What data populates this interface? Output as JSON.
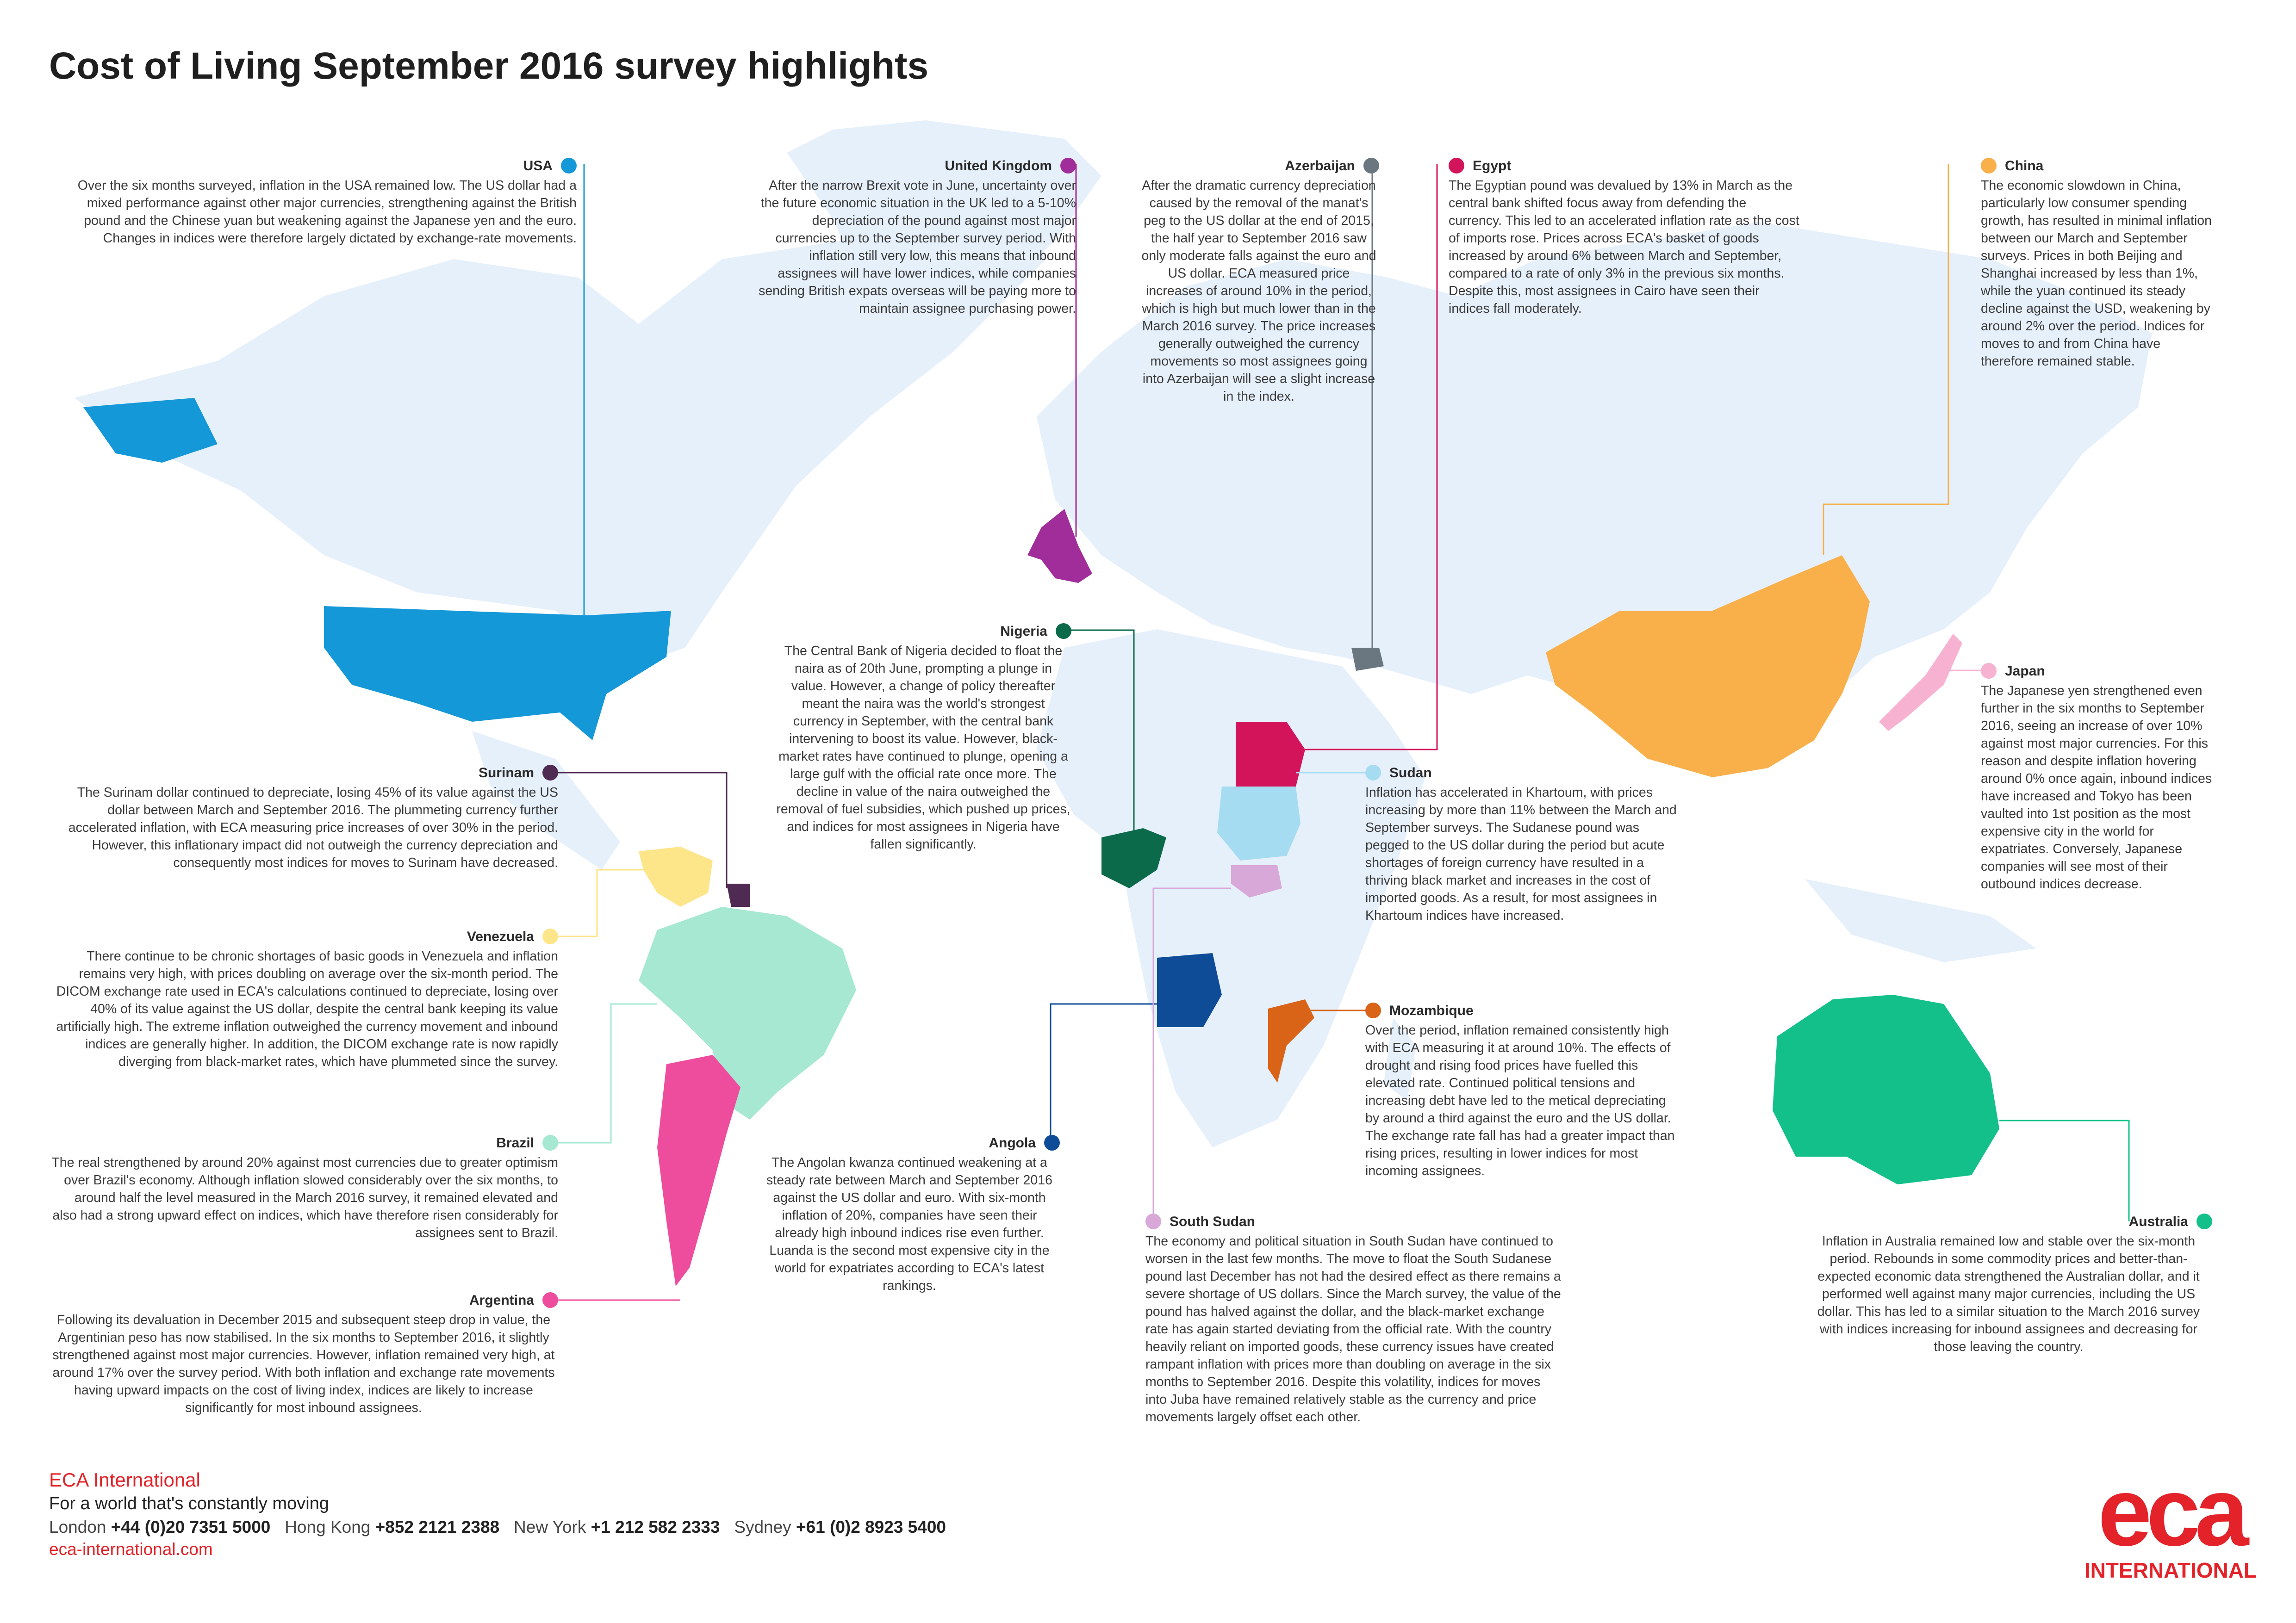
{
  "page": {
    "title": "Cost of Living September 2016 survey highlights"
  },
  "regions": [
    {
      "id": "usa",
      "name": "USA",
      "color": "#1598d8",
      "text": "Over the six months surveyed, inflation in the USA remained low. The US dollar had a mixed performance against other major currencies, strengthening against the British pound and the Chinese yuan but weakening against the Japanese yen and the euro. Changes in indices were therefore largely dictated by exchange-rate movements."
    },
    {
      "id": "uk",
      "name": "United Kingdom",
      "color": "#a02d9a",
      "text": "After the narrow Brexit vote in June, uncertainty over the future economic situation in the UK led to a 5-10% depreciation of the pound against most major currencies up to the September survey period. With inflation still very low, this means that inbound assignees will have lower indices, while companies sending British expats overseas will be paying more to maintain assignee purchasing power."
    },
    {
      "id": "azerbaijan",
      "name": "Azerbaijan",
      "color": "#6a7780",
      "text": "After the dramatic currency depreciation caused by the removal of the manat's peg to the US dollar at the end of 2015, the half year to September 2016 saw only moderate falls against the euro and US dollar. ECA measured price increases of around 10% in the period, which is high but much lower than in the March 2016 survey. The price increases generally outweighed the currency movements so most assignees going into Azerbaijan will see a slight increase in the index."
    },
    {
      "id": "egypt",
      "name": "Egypt",
      "color": "#d4145a",
      "text": "The Egyptian pound was devalued by 13% in March as the central bank shifted focus away from defending the currency. This led to an accelerated inflation rate as the cost of imports rose. Prices across ECA's basket of goods increased by around 6% between March and September, compared to a rate of only 3% in the previous six months. Despite this, most assignees in Cairo have seen their indices fall moderately."
    },
    {
      "id": "china",
      "name": "China",
      "color": "#f9b04b",
      "text": "The economic slowdown in China, particularly low consumer spending growth, has resulted in minimal inflation between our March and September surveys. Prices in both Beijing and Shanghai increased by less than 1%, while the yuan continued its steady decline against the USD, weakening by around 2% over the period. Indices for moves to and from China have therefore remained stable."
    },
    {
      "id": "nigeria",
      "name": "Nigeria",
      "color": "#0b6a4a",
      "text": "The Central Bank of Nigeria decided to float the naira as of 20th June, prompting a plunge in value. However, a change of policy thereafter meant the naira was the world's strongest currency in September, with the central bank intervening to boost its value. However, black-market rates have continued to plunge, opening a large gulf with the official rate once more. The decline in value of the naira outweighed the removal of fuel subsidies, which pushed up prices, and indices for most assignees in Nigeria have fallen significantly."
    },
    {
      "id": "japan",
      "name": "Japan",
      "color": "#f7b2d2",
      "text": "The Japanese yen strengthened even further in the six months to September 2016, seeing an increase of over 10% against most major currencies. For this reason and despite inflation hovering around 0% once again, inbound indices have increased and Tokyo has been vaulted into 1st position as the most expensive city in the world for expatriates. Conversely, Japanese companies will see most of their outbound indices decrease."
    },
    {
      "id": "surinam",
      "name": "Surinam",
      "color": "#4f2a52",
      "text": "The Surinam dollar continued to depreciate, losing 45% of its value against the US dollar between March and September 2016. The plummeting currency further accelerated inflation, with ECA measuring price increases of over 30% in the period. However, this inflationary impact did not outweigh the currency depreciation and consequently most indices for moves to Surinam have decreased."
    },
    {
      "id": "sudan",
      "name": "Sudan",
      "color": "#a6dcf1",
      "text": "Inflation has accelerated in Khartoum, with prices increasing by more than 11% between the March and September surveys. The Sudanese pound was pegged to the US dollar during the period but acute shortages of foreign currency have resulted in a thriving black market and increases in the cost of imported goods. As a result, for most assignees in Khartoum indices have increased."
    },
    {
      "id": "venezuela",
      "name": "Venezuela",
      "color": "#fde58a",
      "text": "There continue to be chronic shortages of basic goods in Venezuela and inflation remains very high, with prices doubling on average over the six-month period. The DICOM exchange rate used in ECA's calculations continued to depreciate, losing over 40% of its value against the US dollar, despite the central bank keeping its value artificially high. The extreme inflation outweighed the currency movement and inbound indices are generally higher. In addition, the DICOM exchange rate is now rapidly diverging from black-market rates, which have plummeted since the survey."
    },
    {
      "id": "mozambique",
      "name": "Mozambique",
      "color": "#d96317",
      "text": "Over the period, inflation remained consistently high with ECA measuring it at around 10%. The effects of drought and rising food prices have fuelled this elevated rate. Continued political tensions and increasing debt have led to the metical depreciating by around a third against the euro and the US dollar. The exchange rate fall has had a greater impact than rising prices, resulting in lower indices for most incoming assignees."
    },
    {
      "id": "brazil",
      "name": "Brazil",
      "color": "#a6e8d2",
      "text": "The real strengthened by around 20% against most currencies due to greater optimism over Brazil's economy. Although inflation slowed considerably over the six months, to around half the level measured in the March 2016 survey, it remained elevated and also had a strong upward effect on indices, which have therefore risen considerably for assignees sent to Brazil."
    },
    {
      "id": "angola",
      "name": "Angola",
      "color": "#0f4c97",
      "text": "The Angolan kwanza continued weakening at a steady rate between March and September 2016 against the US dollar and euro. With six-month inflation of 20%, companies have seen their already high inbound indices rise even further. Luanda is the second most expensive city in the world for expatriates according to ECA's latest rankings."
    },
    {
      "id": "south_sudan",
      "name": "South Sudan",
      "color": "#d8a8d8",
      "text": "The economy and political situation in South Sudan have continued to worsen in the last few months. The move to float the South Sudanese pound last December has not had the desired effect as there remains a severe shortage of US dollars. Since the March survey, the value of the pound has halved against the dollar, and the black-market exchange rate has again started deviating from the official rate. With the country heavily reliant on imported goods, these currency issues have created rampant inflation with prices more than doubling on average in the six months to September 2016. Despite this volatility, indices for moves into Juba have remained relatively stable as the currency and price movements largely offset each other."
    },
    {
      "id": "australia",
      "name": "Australia",
      "color": "#13c08a",
      "text": "Inflation in Australia remained low and stable over the six-month period. Rebounds in some commodity prices and better-than-expected economic data strengthened the Australian dollar, and it performed well against many major currencies, including the US dollar. This has led to a similar situation to the March 2016 survey with indices increasing for inbound assignees and decreasing for those leaving the country."
    },
    {
      "id": "argentina",
      "name": "Argentina",
      "color": "#ee4c9c",
      "text": "Following its devaluation in December 2015 and subsequent steep drop in value, the Argentinian peso has now stabilised. In the six months to September 2016, it slightly strengthened against most major currencies. However, inflation remained very high, at around 17% over the survey period. With both inflation and exchange rate movements having upward impacts on the cost of living index, indices are likely to increase significantly for most inbound assignees."
    }
  ],
  "map": {
    "land_color": "#e6f0fb"
  },
  "footer": {
    "brand": "ECA International",
    "tagline": "For a world that's constantly moving",
    "contacts": [
      {
        "city": "London",
        "phone": "+44 (0)20 7351 5000"
      },
      {
        "city": "Hong Kong",
        "phone": "+852 2121 2388"
      },
      {
        "city": "New York",
        "phone": "+1 212 582 2333"
      },
      {
        "city": "Sydney",
        "phone": "+61 (0)2 8923 5400"
      }
    ],
    "website": "eca-international.com"
  },
  "logo": {
    "mark": "eca",
    "sub": "INTERNATIONAL",
    "color": "#e32229"
  }
}
